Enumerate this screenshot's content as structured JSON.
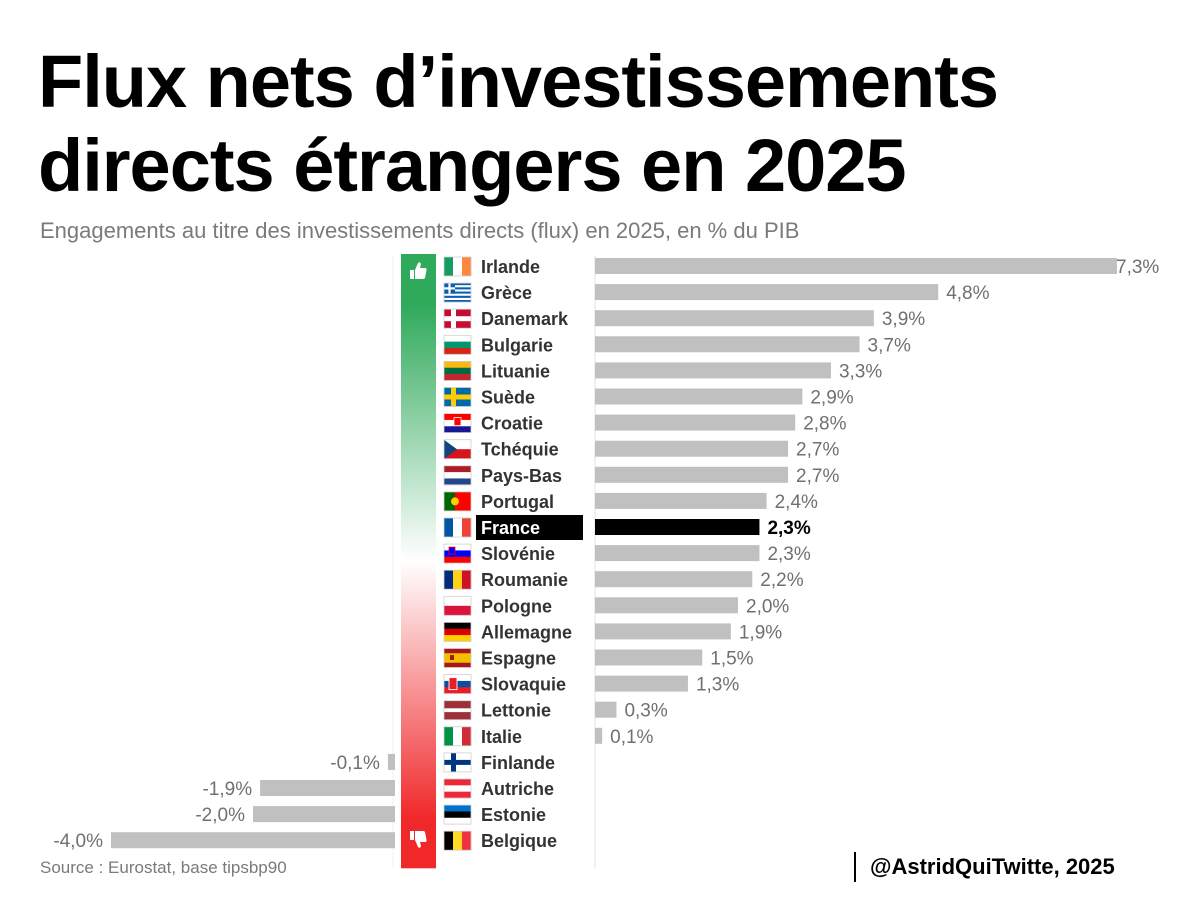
{
  "title": {
    "line1": "Flux nets d’investissements",
    "line2": "directs étrangers en 2025"
  },
  "subtitle": "Engagements au titre des investissements directs (flux) en 2025, en % du PIB",
  "source": "Source : Eurostat, base tipsbp90",
  "credit": "@AstridQuiTwitte, 2025",
  "colors": {
    "bar": "#c0c0c0",
    "highlight": "#000000",
    "positive": "#2fa95a",
    "negative": "#f0282a",
    "value_text": "#707070"
  },
  "icons": {
    "top": "thumbs-up-icon",
    "bottom": "thumbs-down-icon"
  },
  "chart_data": {
    "type": "bar",
    "orientation": "horizontal",
    "unit": "%",
    "highlight": "France",
    "categories": [
      "Irlande",
      "Grèce",
      "Danemark",
      "Bulgarie",
      "Lituanie",
      "Suède",
      "Croatie",
      "Tchéquie",
      "Pays-Bas",
      "Portugal",
      "France",
      "Slovénie",
      "Roumanie",
      "Pologne",
      "Allemagne",
      "Espagne",
      "Slovaquie",
      "Lettonie",
      "Italie",
      "Finlande",
      "Autriche",
      "Estonie",
      "Belgique"
    ],
    "values": [
      7.3,
      4.8,
      3.9,
      3.7,
      3.3,
      2.9,
      2.8,
      2.7,
      2.7,
      2.4,
      2.3,
      2.3,
      2.2,
      2.0,
      1.9,
      1.5,
      1.3,
      0.3,
      0.1,
      -0.1,
      -1.9,
      -2.0,
      -4.0
    ],
    "labels": [
      "7,3%",
      "4,8%",
      "3,9%",
      "3,7%",
      "3,3%",
      "2,9%",
      "2,8%",
      "2,7%",
      "2,7%",
      "2,4%",
      "2,3%",
      "2,3%",
      "2,2%",
      "2,0%",
      "1,9%",
      "1,5%",
      "1,3%",
      "0,3%",
      "0,1%",
      "-0,1%",
      "-1,9%",
      "-2,0%",
      "-4,0%"
    ],
    "flags": [
      "ireland-flag-icon",
      "greece-flag-icon",
      "denmark-flag-icon",
      "bulgaria-flag-icon",
      "lithuania-flag-icon",
      "sweden-flag-icon",
      "croatia-flag-icon",
      "czechia-flag-icon",
      "netherlands-flag-icon",
      "portugal-flag-icon",
      "france-flag-icon",
      "slovenia-flag-icon",
      "romania-flag-icon",
      "poland-flag-icon",
      "germany-flag-icon",
      "spain-flag-icon",
      "slovakia-flag-icon",
      "latvia-flag-icon",
      "italy-flag-icon",
      "finland-flag-icon",
      "austria-flag-icon",
      "estonia-flag-icon",
      "belgium-flag-icon"
    ]
  }
}
